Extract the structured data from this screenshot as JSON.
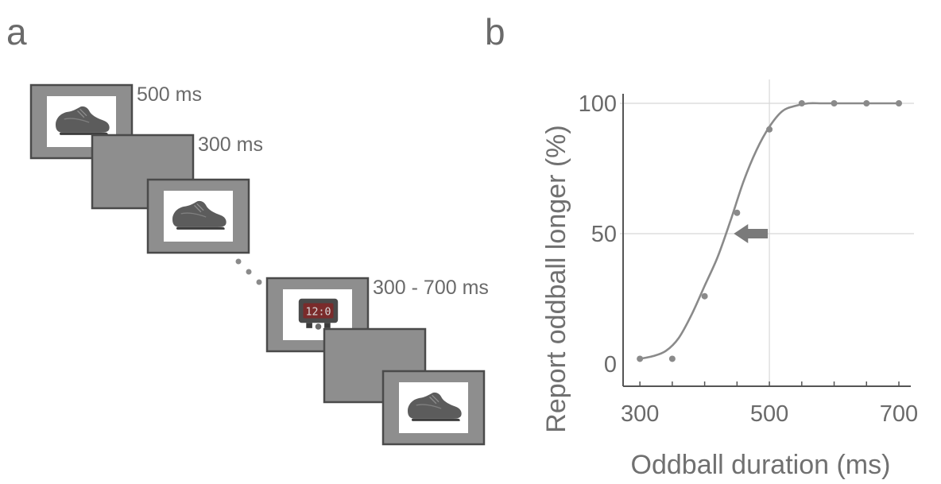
{
  "figure": {
    "panel_a_letter": "a",
    "panel_b_letter": "b"
  },
  "panel_a": {
    "frames": [
      {
        "kind": "image",
        "image": "shoe-icon",
        "duration_label": "500 ms"
      },
      {
        "kind": "blank",
        "image": "",
        "duration_label": "300 ms"
      },
      {
        "kind": "image",
        "image": "shoe-icon",
        "duration_label": ""
      },
      {
        "kind": "image",
        "image": "alarm-clock-icon",
        "duration_label": "300 - 700 ms"
      },
      {
        "kind": "blank",
        "image": "",
        "duration_label": ""
      },
      {
        "kind": "image",
        "image": "shoe-icon",
        "duration_label": ""
      }
    ],
    "ellipsis_icon": "ellipsis-dots-icon"
  },
  "chart_data": {
    "type": "line",
    "title": "",
    "xlabel": "Oddball duration (ms)",
    "ylabel": "Report oddball longer (%)",
    "xlim": [
      290,
      700
    ],
    "ylim": [
      0,
      100
    ],
    "xticks": [
      300,
      500,
      700
    ],
    "yticks": [
      0,
      50,
      100
    ],
    "x_minor_ticks": [
      300,
      350,
      400,
      450,
      500,
      550,
      600,
      650,
      700
    ],
    "gridlines": {
      "x": [
        500
      ],
      "y": [
        50,
        100
      ]
    },
    "series": [
      {
        "kind": "points",
        "x": [
          300,
          350,
          400,
          450,
          500,
          550,
          600,
          650,
          700
        ],
        "y": [
          2,
          2,
          26,
          58,
          90,
          100,
          100,
          100,
          100
        ]
      },
      {
        "kind": "fit-curve",
        "x": [
          300,
          320,
          340,
          360,
          380,
          400,
          420,
          440,
          460,
          480,
          500,
          520,
          540,
          560,
          580,
          600,
          650,
          700
        ],
        "y": [
          2,
          3,
          5,
          10,
          19,
          30,
          41,
          55,
          70,
          82,
          91,
          97,
          99,
          100,
          100,
          100,
          100,
          100
        ]
      }
    ],
    "annotation": {
      "kind": "arrow",
      "direction": "left",
      "icon": "left-arrow-icon",
      "x_from": 500,
      "x_to": 445,
      "y": 50
    },
    "colors": {
      "line": "#8a8a8a",
      "marker": "#8a8a8a",
      "grid": "#d8d8d8",
      "arrow": "#7a7a7a",
      "frame_gray": "#8e8e8e"
    }
  }
}
